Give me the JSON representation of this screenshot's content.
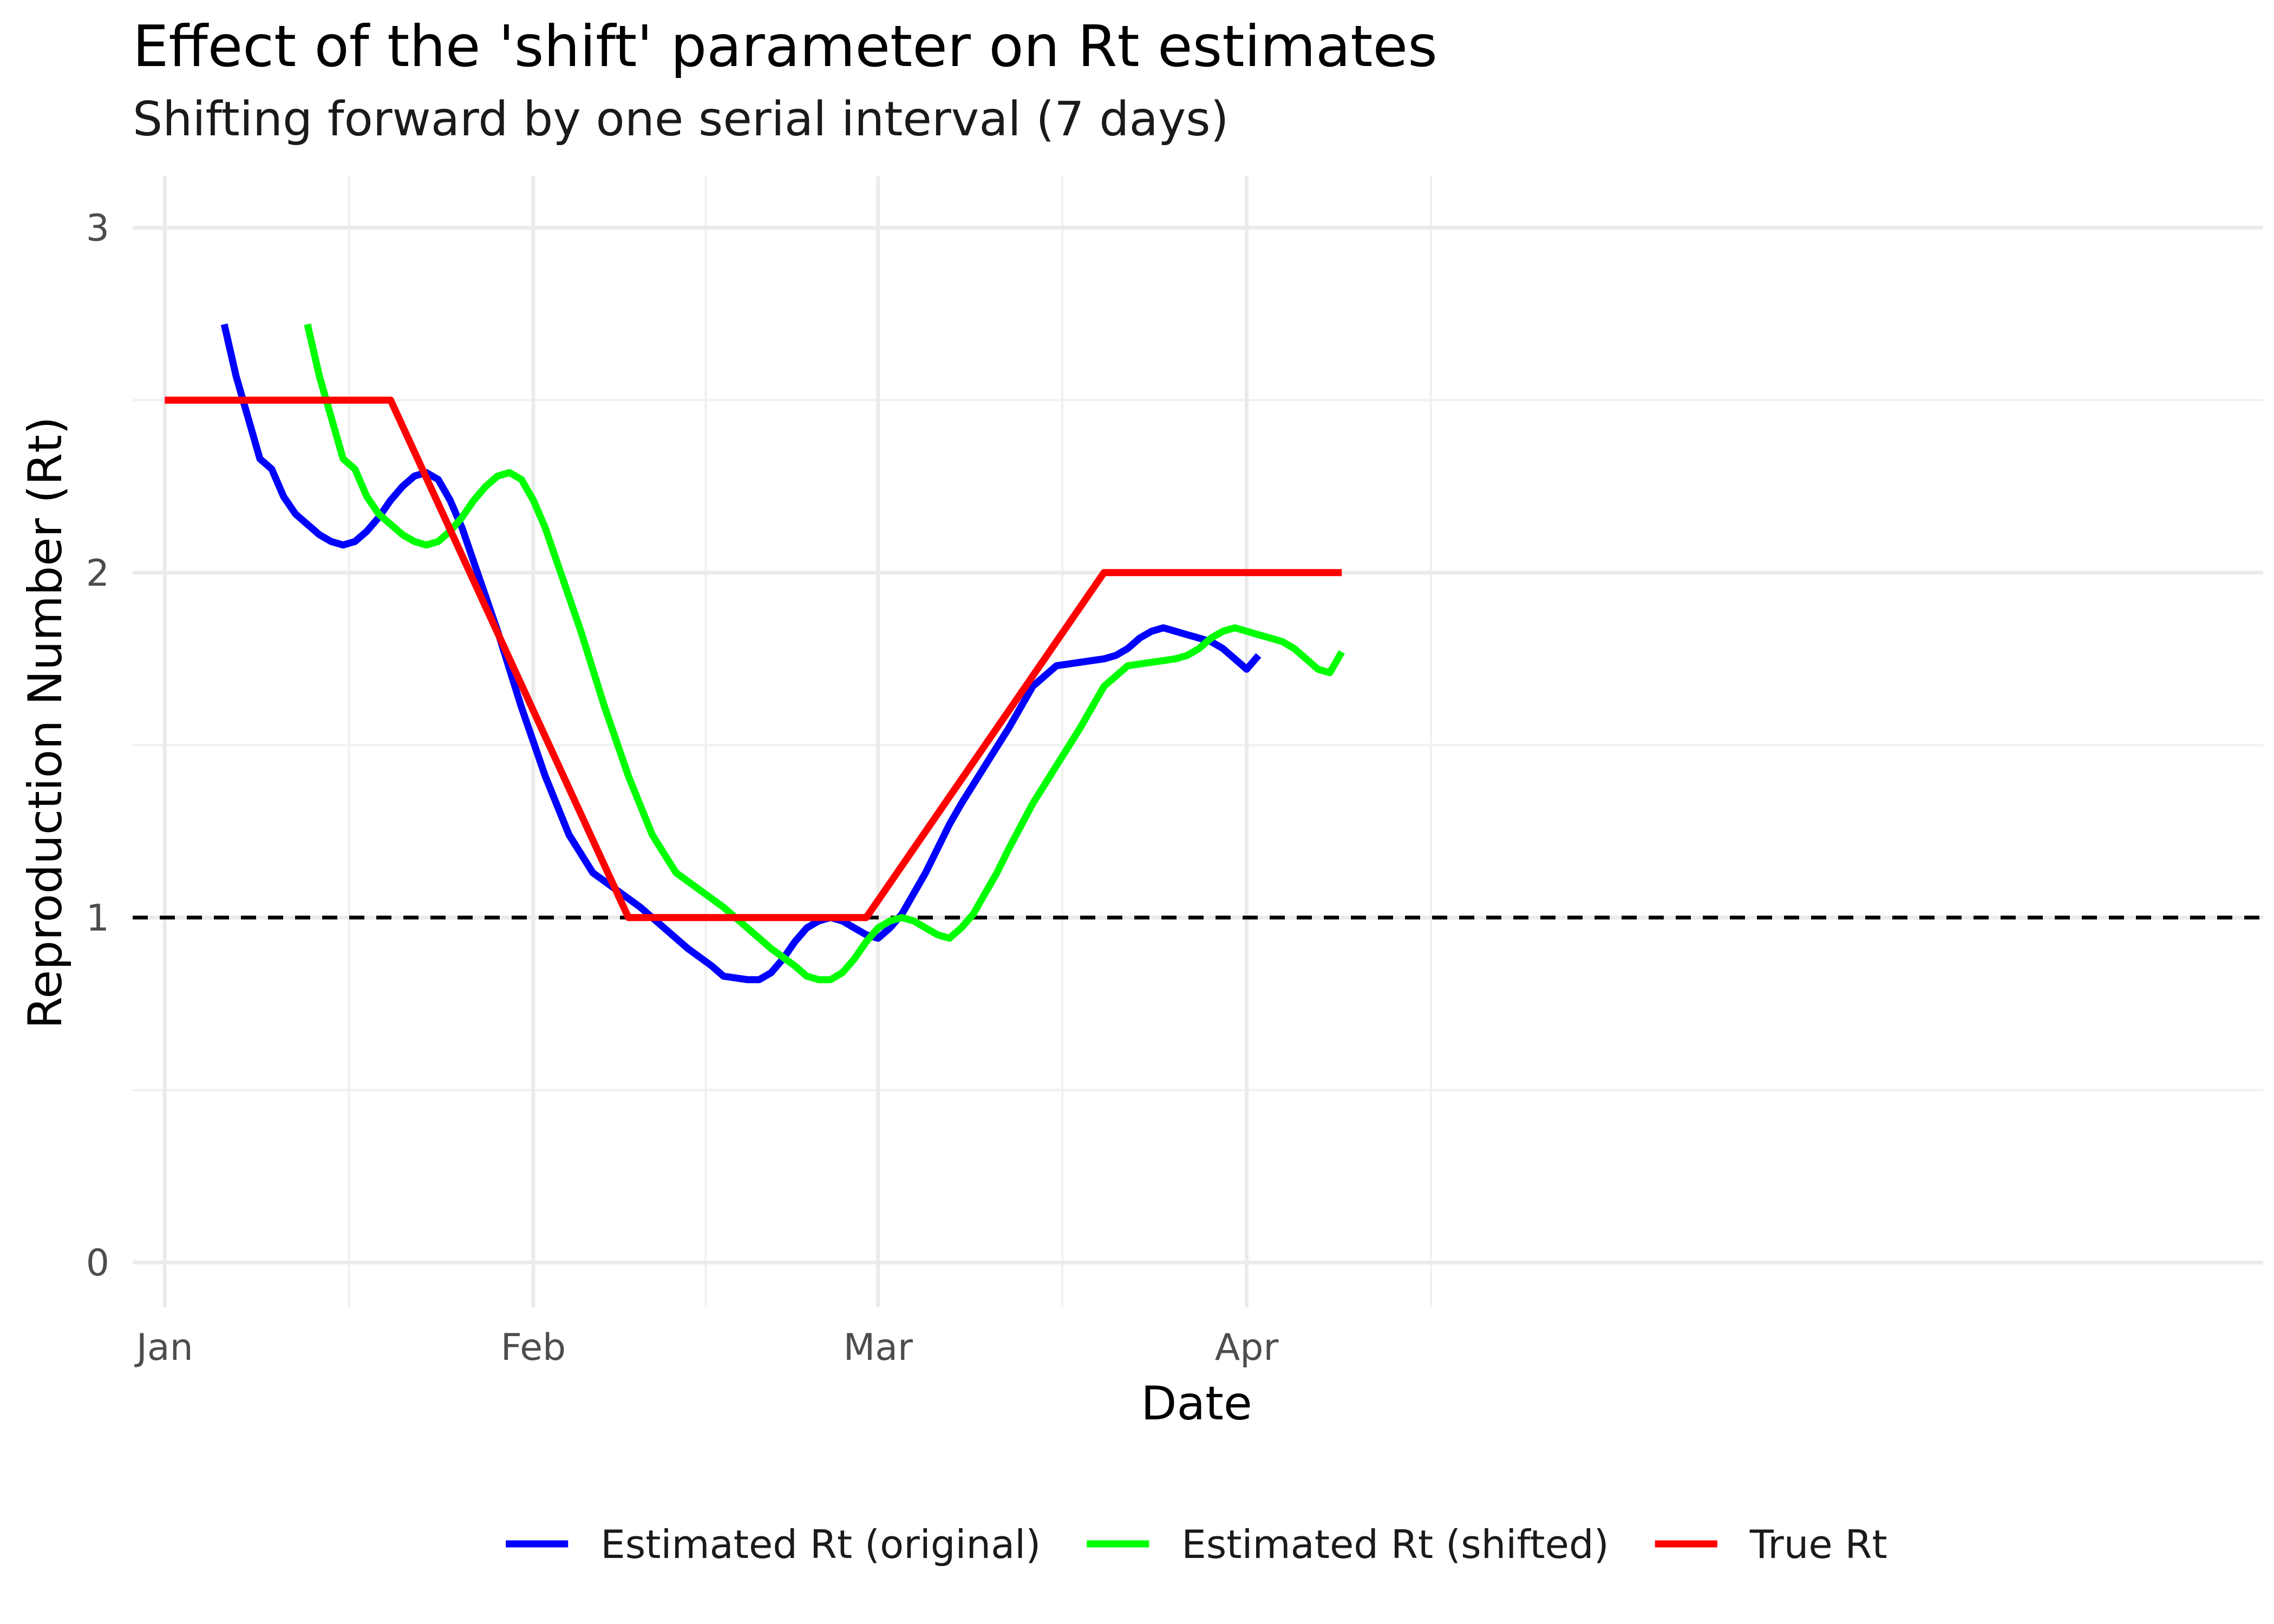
{
  "chart_data": {
    "type": "line",
    "title": "Effect of the 'shift' parameter on Rt estimates",
    "subtitle": "Shifting forward by one serial interval (7 days)",
    "xlabel": "Date",
    "ylabel": "Reproduction Number (Rt)",
    "x_tick_labels": [
      "Jan",
      "Feb",
      "Mar",
      "Apr"
    ],
    "y_tick_labels": [
      "0",
      "1",
      "2",
      "3"
    ],
    "y_ticks": [
      0,
      1,
      2,
      3
    ],
    "ylim": [
      -0.13,
      3.15
    ],
    "x_unit": "day of 2020 (Jan 1 = 1)",
    "xlim": [
      -1.7,
      177.5
    ],
    "grid": true,
    "legend_position": "bottom",
    "reference_line": {
      "y": 1,
      "style": "dashed",
      "color": "#000000"
    },
    "series": [
      {
        "name": "Estimated Rt (original)",
        "color": "#0000FF",
        "x": [
          6,
          7,
          8,
          9,
          10,
          11,
          12,
          13,
          14,
          15,
          16,
          17,
          18,
          19,
          20,
          21,
          22,
          23,
          24,
          25,
          26,
          27,
          28,
          29,
          30,
          31,
          33,
          35,
          37,
          39,
          41,
          43,
          45,
          47,
          48,
          50,
          51,
          52,
          53,
          54,
          55,
          56,
          57,
          58,
          59,
          60,
          61,
          62,
          63,
          64,
          65,
          66,
          67,
          68,
          70,
          72,
          74,
          76,
          78,
          80,
          81,
          82,
          83,
          84,
          85,
          86,
          87,
          88,
          89,
          90,
          91,
          92,
          93
        ],
        "y": [
          2.72,
          2.57,
          2.45,
          2.33,
          2.3,
          2.22,
          2.17,
          2.14,
          2.11,
          2.09,
          2.08,
          2.09,
          2.12,
          2.16,
          2.21,
          2.25,
          2.28,
          2.29,
          2.27,
          2.21,
          2.13,
          2.03,
          1.93,
          1.83,
          1.72,
          1.61,
          1.41,
          1.24,
          1.13,
          1.08,
          1.03,
          0.97,
          0.91,
          0.86,
          0.83,
          0.82,
          0.82,
          0.84,
          0.88,
          0.93,
          0.97,
          0.99,
          1.0,
          0.99,
          0.97,
          0.95,
          0.94,
          0.97,
          1.01,
          1.07,
          1.13,
          1.2,
          1.27,
          1.33,
          1.44,
          1.55,
          1.67,
          1.73,
          1.74,
          1.75,
          1.76,
          1.78,
          1.81,
          1.83,
          1.84,
          1.83,
          1.82,
          1.81,
          1.8,
          1.78,
          1.75,
          1.72,
          1.76
        ]
      },
      {
        "name": "Estimated Rt (shifted)",
        "color": "#00FF00",
        "x": [
          13,
          14,
          15,
          16,
          17,
          18,
          19,
          20,
          21,
          22,
          23,
          24,
          25,
          26,
          27,
          28,
          29,
          30,
          31,
          32,
          33,
          34,
          35,
          36,
          38,
          40,
          42,
          44,
          46,
          48,
          50,
          52,
          54,
          55,
          56,
          57,
          58,
          59,
          60,
          61,
          62,
          63,
          64,
          65,
          66,
          67,
          68,
          69,
          70,
          71,
          72,
          74,
          76,
          78,
          80,
          82,
          84,
          86,
          87,
          88,
          89,
          90,
          91,
          92,
          93,
          94,
          95,
          96,
          97,
          98,
          99,
          100
        ],
        "y": [
          2.72,
          2.57,
          2.45,
          2.33,
          2.3,
          2.22,
          2.17,
          2.14,
          2.11,
          2.09,
          2.08,
          2.09,
          2.12,
          2.16,
          2.21,
          2.25,
          2.28,
          2.29,
          2.27,
          2.21,
          2.13,
          2.03,
          1.93,
          1.83,
          1.61,
          1.41,
          1.24,
          1.13,
          1.08,
          1.03,
          0.97,
          0.91,
          0.86,
          0.83,
          0.82,
          0.82,
          0.84,
          0.88,
          0.93,
          0.97,
          0.99,
          1.0,
          0.99,
          0.97,
          0.95,
          0.94,
          0.97,
          1.01,
          1.07,
          1.13,
          1.2,
          1.33,
          1.44,
          1.55,
          1.67,
          1.73,
          1.74,
          1.75,
          1.76,
          1.78,
          1.81,
          1.83,
          1.84,
          1.83,
          1.82,
          1.81,
          1.8,
          1.78,
          1.75,
          1.72,
          1.71,
          1.77
        ]
      },
      {
        "name": "True Rt",
        "color": "#FF0000",
        "x": [
          1,
          20,
          40,
          60,
          80,
          100
        ],
        "y": [
          2.5,
          2.5,
          1.0,
          1.0,
          2.0,
          2.0
        ]
      }
    ]
  }
}
